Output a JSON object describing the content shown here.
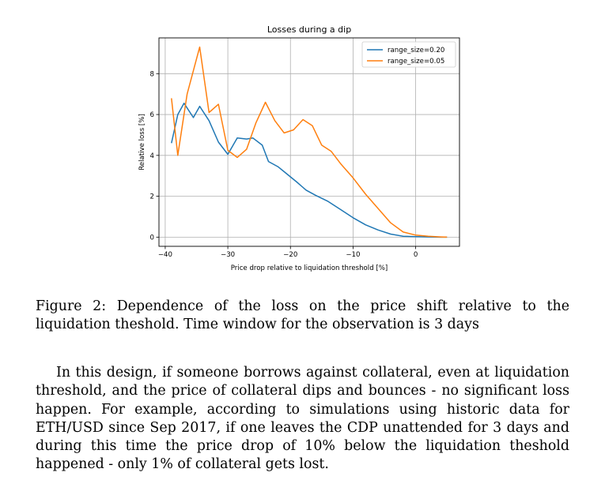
{
  "figure": {
    "caption": "Figure 2: Dependence of the loss on the price shift relative to the liquidation theshold. Time window for the observation is 3 days"
  },
  "paragraph": "In this design, if someone borrows against collateral, even at liquidation threshold, and the price of collateral dips and bounces - no significant loss happen. For example, according to simulations using historic data for ETH/USD since Sep 2017, if one leaves the CDP unattended for 3 days and during this time the price drop of 10% below the liquidation theshold happened - only 1% of collateral gets lost.",
  "chart_data": {
    "type": "line",
    "title": "Losses during a dip",
    "xlabel": "Price drop relative to liquidation threshold [%]",
    "ylabel": "Relative loss [%]",
    "xlim": [
      -41,
      7
    ],
    "ylim": [
      -0.45,
      9.75
    ],
    "xticks": [
      -40,
      -30,
      -20,
      -10,
      0
    ],
    "yticks": [
      0,
      2,
      4,
      6,
      8
    ],
    "xtick_labels": [
      "−40",
      "−30",
      "−20",
      "−10",
      "0"
    ],
    "ytick_labels": [
      "0",
      "2",
      "4",
      "6",
      "8"
    ],
    "grid": true,
    "legend_position": "upper right",
    "series": [
      {
        "name": "range_size=0.20",
        "color": "#1f77b4",
        "x": [
          -39,
          -38,
          -37,
          -35.5,
          -34.5,
          -33,
          -31.5,
          -30,
          -28.5,
          -27,
          -26,
          -24.5,
          -23.5,
          -22,
          -21,
          -19,
          -17.5,
          -16,
          -14,
          -12,
          -10,
          -8,
          -6,
          -4,
          -2,
          0,
          2,
          4,
          5
        ],
        "y": [
          4.6,
          6.0,
          6.55,
          5.85,
          6.4,
          5.7,
          4.65,
          4.05,
          4.85,
          4.8,
          4.85,
          4.5,
          3.7,
          3.45,
          3.2,
          2.7,
          2.3,
          2.05,
          1.75,
          1.35,
          0.95,
          0.6,
          0.35,
          0.15,
          0.04,
          0.02,
          0.01,
          0.0,
          0.0
        ]
      },
      {
        "name": "range_size=0.05",
        "color": "#ff7f0e",
        "x": [
          -39,
          -38,
          -36.5,
          -34.5,
          -33,
          -31.5,
          -30,
          -28.5,
          -27,
          -25.5,
          -24,
          -22.5,
          -21,
          -19.5,
          -18,
          -16.5,
          -15,
          -13.5,
          -12,
          -10,
          -8,
          -6,
          -4,
          -2,
          0,
          2,
          4,
          5
        ],
        "y": [
          6.8,
          4.0,
          7.0,
          9.3,
          6.1,
          6.5,
          4.25,
          3.9,
          4.3,
          5.6,
          6.6,
          5.7,
          5.1,
          5.25,
          5.75,
          5.45,
          4.5,
          4.2,
          3.6,
          2.9,
          2.1,
          1.4,
          0.7,
          0.25,
          0.1,
          0.04,
          0.01,
          0.0
        ]
      }
    ]
  }
}
